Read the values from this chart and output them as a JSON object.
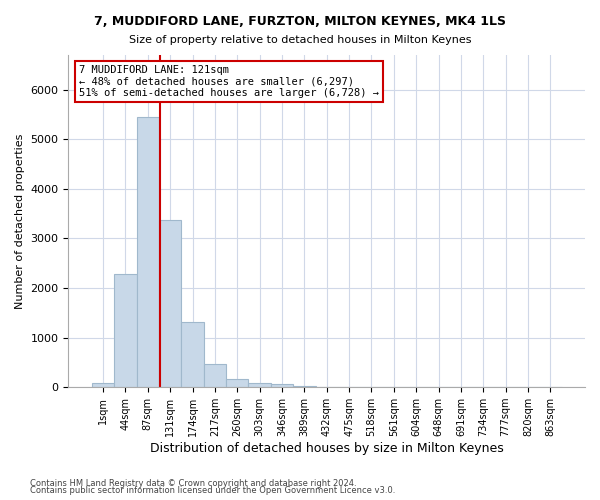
{
  "title": "7, MUDDIFORD LANE, FURZTON, MILTON KEYNES, MK4 1LS",
  "subtitle": "Size of property relative to detached houses in Milton Keynes",
  "xlabel": "Distribution of detached houses by size in Milton Keynes",
  "ylabel": "Number of detached properties",
  "bar_color": "#c8d8e8",
  "bar_edge_color": "#a0b8cc",
  "grid_color": "#d0d8e8",
  "annotation_line": "7 MUDDIFORD LANE: 121sqm",
  "annotation_smaller": "← 48% of detached houses are smaller (6,297)",
  "annotation_larger": "51% of semi-detached houses are larger (6,728) →",
  "annotation_box_color": "#cc0000",
  "vline_color": "#cc0000",
  "footnote1": "Contains HM Land Registry data © Crown copyright and database right 2024.",
  "footnote2": "Contains public sector information licensed under the Open Government Licence v3.0.",
  "bin_labels": [
    "1sqm",
    "44sqm",
    "87sqm",
    "131sqm",
    "174sqm",
    "217sqm",
    "260sqm",
    "303sqm",
    "346sqm",
    "389sqm",
    "432sqm",
    "475sqm",
    "518sqm",
    "561sqm",
    "604sqm",
    "648sqm",
    "691sqm",
    "734sqm",
    "777sqm",
    "820sqm",
    "863sqm"
  ],
  "bar_values": [
    80,
    2280,
    5450,
    3380,
    1310,
    475,
    165,
    90,
    60,
    30,
    0,
    0,
    0,
    0,
    0,
    0,
    0,
    0,
    0,
    0,
    0
  ],
  "ylim": [
    0,
    6700
  ],
  "vline_x_bin": 2.55
}
